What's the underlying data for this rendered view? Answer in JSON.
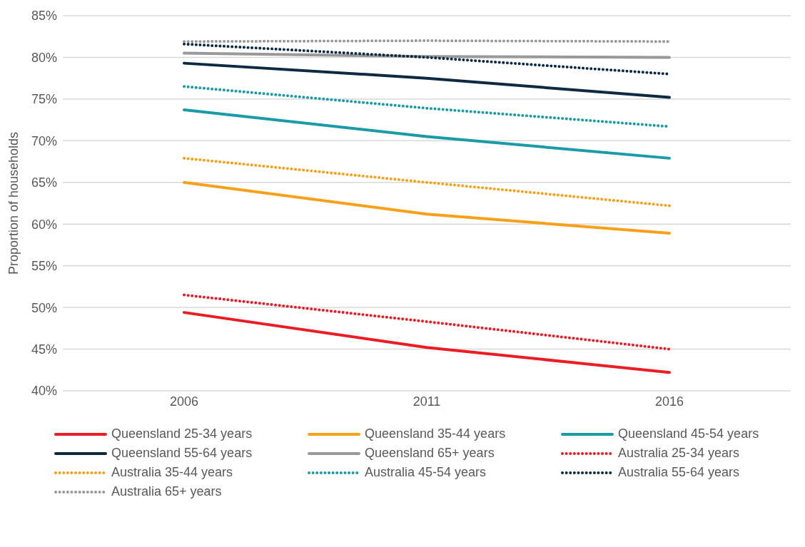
{
  "chart_data": {
    "type": "line",
    "ylabel": "Proportion of households",
    "categories": [
      "2006",
      "2011",
      "2016"
    ],
    "ylim": [
      40,
      85
    ],
    "yticks": [
      {
        "value": 40,
        "label": "40%"
      },
      {
        "value": 45,
        "label": "45%"
      },
      {
        "value": 50,
        "label": "50%"
      },
      {
        "value": 55,
        "label": "55%"
      },
      {
        "value": 60,
        "label": "60%"
      },
      {
        "value": 65,
        "label": "65%"
      },
      {
        "value": 70,
        "label": "70%"
      },
      {
        "value": 75,
        "label": "75%"
      },
      {
        "value": 80,
        "label": "80%"
      },
      {
        "value": 85,
        "label": "85%"
      }
    ],
    "grid": "y",
    "legend": "bottom",
    "marker": "none",
    "series": [
      {
        "name": "Queensland 25-34 years",
        "color": "#ec1c24",
        "line_style": "solid",
        "values": [
          49.4,
          45.2,
          42.2
        ]
      },
      {
        "name": "Queensland 35-44 years",
        "color": "#f7a11a",
        "line_style": "solid",
        "values": [
          65.0,
          61.2,
          58.9
        ]
      },
      {
        "name": "Queensland 45-54 years",
        "color": "#1a9ba6",
        "line_style": "solid",
        "values": [
          73.7,
          70.5,
          67.9
        ]
      },
      {
        "name": "Queensland 55-64 years",
        "color": "#0e2a43",
        "line_style": "solid",
        "values": [
          79.3,
          77.5,
          75.2
        ]
      },
      {
        "name": "Queensland 65+ years",
        "color": "#999999",
        "line_style": "solid",
        "values": [
          80.5,
          80.1,
          80.0
        ]
      },
      {
        "name": "Australia 25-34 years",
        "color": "#ec1c24",
        "line_style": "dotted",
        "values": [
          51.5,
          48.3,
          45.0
        ]
      },
      {
        "name": "Australia 35-44 years",
        "color": "#f7a11a",
        "line_style": "dotted",
        "values": [
          67.9,
          65.0,
          62.2
        ]
      },
      {
        "name": "Australia 45-54 years",
        "color": "#1a9ba6",
        "line_style": "dotted",
        "values": [
          76.5,
          73.9,
          71.7
        ]
      },
      {
        "name": "Australia 55-64 years",
        "color": "#0e2a43",
        "line_style": "dotted",
        "values": [
          81.6,
          80.0,
          78.0
        ]
      },
      {
        "name": "Australia 65+ years",
        "color": "#999999",
        "line_style": "dotted",
        "values": [
          81.9,
          82.0,
          81.9
        ]
      }
    ]
  }
}
